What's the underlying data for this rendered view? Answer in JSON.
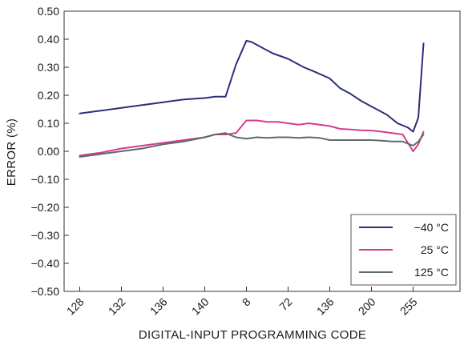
{
  "chart_data": {
    "type": "line",
    "title": "",
    "xlabel": "DIGITAL-INPUT PROGRAMMING CODE",
    "ylabel": "ERROR (%)",
    "ylim": [
      -0.5,
      0.5
    ],
    "yticks": [
      "0.50",
      "0.40",
      "0.30",
      "0.20",
      "0.10",
      "0.00",
      "−0.10",
      "−0.20",
      "−0.30",
      "−0.40",
      "−0.50"
    ],
    "ytick_values": [
      0.5,
      0.4,
      0.3,
      0.2,
      0.1,
      0.0,
      -0.1,
      -0.2,
      -0.3,
      -0.4,
      -0.5
    ],
    "xlim": [
      0,
      19
    ],
    "xticks": [
      "128",
      "132",
      "136",
      "140",
      "8",
      "72",
      "136",
      "200",
      "255"
    ],
    "xtick_positions": [
      0.75,
      2.75,
      4.75,
      6.75,
      8.75,
      10.75,
      12.75,
      14.75,
      16.75
    ],
    "grid": false,
    "legend_position": "bottom-right",
    "series": [
      {
        "name": "−40 °C",
        "color": "#2b2f7a",
        "x": [
          0.75,
          1.75,
          2.75,
          3.75,
          4.75,
          5.75,
          6.75,
          7.25,
          7.75,
          8.25,
          8.75,
          9.0,
          9.5,
          10.0,
          10.75,
          11.5,
          12.0,
          12.75,
          13.25,
          13.75,
          14.25,
          14.75,
          15.5,
          16.0,
          16.5,
          16.75,
          17.0,
          17.25
        ],
        "y": [
          0.135,
          0.145,
          0.155,
          0.165,
          0.175,
          0.185,
          0.19,
          0.195,
          0.195,
          0.31,
          0.395,
          0.39,
          0.37,
          0.35,
          0.33,
          0.3,
          0.285,
          0.26,
          0.225,
          0.205,
          0.18,
          0.16,
          0.13,
          0.1,
          0.085,
          0.07,
          0.12,
          0.385
        ]
      },
      {
        "name": "25 °C",
        "color": "#d63c8e",
        "x": [
          0.75,
          1.75,
          2.75,
          3.75,
          4.75,
          5.75,
          6.75,
          7.25,
          7.75,
          8.25,
          8.75,
          9.25,
          9.75,
          10.25,
          10.75,
          11.25,
          11.75,
          12.25,
          12.75,
          13.25,
          13.75,
          14.25,
          14.75,
          15.25,
          15.75,
          16.25,
          16.75,
          17.0,
          17.25
        ],
        "y": [
          -0.015,
          -0.005,
          0.01,
          0.02,
          0.03,
          0.04,
          0.05,
          0.06,
          0.06,
          0.065,
          0.11,
          0.11,
          0.105,
          0.105,
          0.1,
          0.095,
          0.1,
          0.095,
          0.09,
          0.08,
          0.078,
          0.075,
          0.074,
          0.07,
          0.065,
          0.06,
          0.0,
          0.025,
          0.07
        ]
      },
      {
        "name": "125 °C",
        "color": "#5f6b6b",
        "x": [
          0.75,
          1.75,
          2.75,
          3.75,
          4.75,
          5.75,
          6.75,
          7.25,
          7.75,
          8.25,
          8.75,
          9.25,
          9.75,
          10.25,
          10.75,
          11.25,
          11.75,
          12.25,
          12.75,
          13.25,
          13.75,
          14.25,
          14.75,
          15.25,
          15.75,
          16.25,
          16.75,
          17.0,
          17.25
        ],
        "y": [
          -0.02,
          -0.01,
          0.0,
          0.01,
          0.025,
          0.035,
          0.05,
          0.06,
          0.065,
          0.05,
          0.045,
          0.05,
          0.048,
          0.05,
          0.05,
          0.048,
          0.05,
          0.048,
          0.04,
          0.04,
          0.04,
          0.04,
          0.04,
          0.038,
          0.035,
          0.035,
          0.02,
          0.035,
          0.06
        ]
      }
    ]
  }
}
